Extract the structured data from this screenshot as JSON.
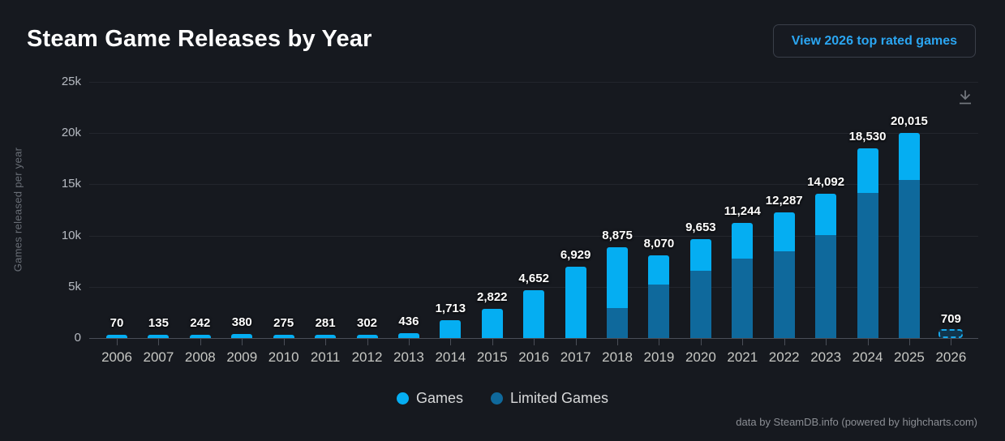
{
  "header": {
    "title": "Steam Game Releases by Year",
    "button_label": "View 2026 top rated games"
  },
  "icons": {
    "export": "download-arrow-with-tray"
  },
  "colors": {
    "background": "#16191f",
    "games": "#05aef2",
    "limited_games": "#0f699c",
    "button_text": "#2ba6f2",
    "gridline": "#23262d",
    "axis_line": "#4a4e57",
    "estimate_dash": "#17a6e9"
  },
  "chart_data": {
    "type": "bar",
    "stacked": true,
    "title": "Steam Game Releases by Year",
    "xlabel": "",
    "ylabel": "Games released per year",
    "ylim": [
      0,
      25000
    ],
    "grid": true,
    "legend_position": "bottom",
    "yticks": [
      {
        "label": "0",
        "value": 0
      },
      {
        "label": "5k",
        "value": 5000
      },
      {
        "label": "10k",
        "value": 10000
      },
      {
        "label": "15k",
        "value": 15000
      },
      {
        "label": "20k",
        "value": 20000
      },
      {
        "label": "25k",
        "value": 25000
      }
    ],
    "legend": [
      {
        "label": "Games",
        "color": "#05aef2"
      },
      {
        "label": "Limited Games",
        "color": "#0f699c"
      }
    ],
    "categories": [
      "2006",
      "2007",
      "2008",
      "2009",
      "2010",
      "2011",
      "2012",
      "2013",
      "2014",
      "2015",
      "2016",
      "2017",
      "2018",
      "2019",
      "2020",
      "2021",
      "2022",
      "2023",
      "2024",
      "2025",
      "2026"
    ],
    "series": [
      {
        "name": "Games",
        "values": [
          70,
          135,
          242,
          380,
          275,
          281,
          302,
          436,
          1713,
          2822,
          4652,
          6929,
          5925,
          2820,
          3113,
          3514,
          3837,
          4072,
          4390,
          4565,
          149
        ]
      },
      {
        "name": "Limited Games",
        "values": [
          0,
          0,
          0,
          0,
          0,
          0,
          0,
          0,
          0,
          0,
          0,
          0,
          2950,
          5250,
          6540,
          7730,
          8450,
          10020,
          14140,
          15450,
          560
        ]
      }
    ],
    "points": [
      {
        "year": "2006",
        "total": 70,
        "games": 70,
        "limited": 0,
        "label": "70",
        "dashed": false
      },
      {
        "year": "2007",
        "total": 135,
        "games": 135,
        "limited": 0,
        "label": "135",
        "dashed": false
      },
      {
        "year": "2008",
        "total": 242,
        "games": 242,
        "limited": 0,
        "label": "242",
        "dashed": false
      },
      {
        "year": "2009",
        "total": 380,
        "games": 380,
        "limited": 0,
        "label": "380",
        "dashed": false
      },
      {
        "year": "2010",
        "total": 275,
        "games": 275,
        "limited": 0,
        "label": "275",
        "dashed": false
      },
      {
        "year": "2011",
        "total": 281,
        "games": 281,
        "limited": 0,
        "label": "281",
        "dashed": false
      },
      {
        "year": "2012",
        "total": 302,
        "games": 302,
        "limited": 0,
        "label": "302",
        "dashed": false
      },
      {
        "year": "2013",
        "total": 436,
        "games": 436,
        "limited": 0,
        "label": "436",
        "dashed": false
      },
      {
        "year": "2014",
        "total": 1713,
        "games": 1713,
        "limited": 0,
        "label": "1,713",
        "dashed": false
      },
      {
        "year": "2015",
        "total": 2822,
        "games": 2822,
        "limited": 0,
        "label": "2,822",
        "dashed": false
      },
      {
        "year": "2016",
        "total": 4652,
        "games": 4652,
        "limited": 0,
        "label": "4,652",
        "dashed": false
      },
      {
        "year": "2017",
        "total": 6929,
        "games": 6929,
        "limited": 0,
        "label": "6,929",
        "dashed": false
      },
      {
        "year": "2018",
        "total": 8875,
        "games": 5925,
        "limited": 2950,
        "label": "8,875",
        "dashed": false
      },
      {
        "year": "2019",
        "total": 8070,
        "games": 2820,
        "limited": 5250,
        "label": "8,070",
        "dashed": false
      },
      {
        "year": "2020",
        "total": 9653,
        "games": 3113,
        "limited": 6540,
        "label": "9,653",
        "dashed": false
      },
      {
        "year": "2021",
        "total": 11244,
        "games": 3514,
        "limited": 7730,
        "label": "11,244",
        "dashed": false
      },
      {
        "year": "2022",
        "total": 12287,
        "games": 3837,
        "limited": 8450,
        "label": "12,287",
        "dashed": false
      },
      {
        "year": "2023",
        "total": 14092,
        "games": 4072,
        "limited": 10020,
        "label": "14,092",
        "dashed": false
      },
      {
        "year": "2024",
        "total": 18530,
        "games": 4390,
        "limited": 14140,
        "label": "18,530",
        "dashed": false
      },
      {
        "year": "2025",
        "total": 20015,
        "games": 4565,
        "limited": 15450,
        "label": "20,015",
        "dashed": false
      },
      {
        "year": "2026",
        "total": 709,
        "games": 149,
        "limited": 560,
        "label": "709",
        "dashed": true
      }
    ]
  },
  "footer": {
    "credit": "data by SteamDB.info (powered by highcharts.com)"
  }
}
